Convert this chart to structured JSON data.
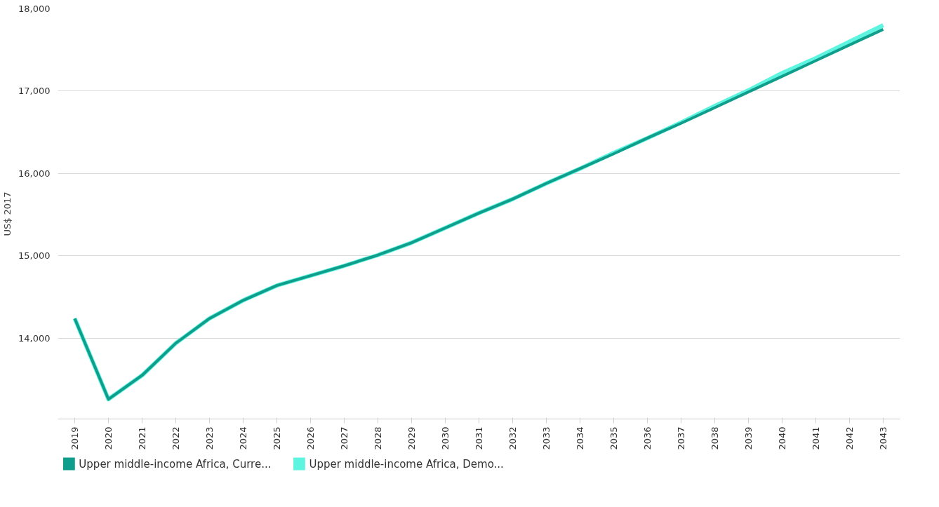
{
  "chart_data": {
    "type": "line",
    "ylabel": "US$ 2017",
    "categories": [
      "2019",
      "2020",
      "2021",
      "2022",
      "2023",
      "2024",
      "2025",
      "2026",
      "2027",
      "2028",
      "2029",
      "2030",
      "2031",
      "2032",
      "2033",
      "2034",
      "2035",
      "2036",
      "2037",
      "2038",
      "2039",
      "2040",
      "2041",
      "2042",
      "2043"
    ],
    "series": [
      {
        "name": "Upper middle-income Africa, Curre...",
        "color": "#0f9e8c",
        "values": [
          14240,
          13260,
          13550,
          13940,
          14240,
          14460,
          14640,
          14760,
          14880,
          15010,
          15160,
          15340,
          15520,
          15690,
          15880,
          16060,
          16240,
          16430,
          16610,
          16800,
          16990,
          17180,
          17370,
          17560,
          17750
        ]
      },
      {
        "name": "Upper middle-income Africa, Demo...",
        "color": "#5ef5e0",
        "values": [
          14240,
          13260,
          13550,
          13940,
          14240,
          14460,
          14640,
          14760,
          14880,
          15010,
          15160,
          15340,
          15520,
          15690,
          15880,
          16060,
          16250,
          16430,
          16620,
          16820,
          17010,
          17220,
          17400,
          17600,
          17800
        ]
      }
    ],
    "ylim": [
      13020,
      18000
    ],
    "yticks": [
      {
        "value": 14000,
        "label": "14,000"
      },
      {
        "value": 15000,
        "label": "15,000"
      },
      {
        "value": 16000,
        "label": "16,000"
      },
      {
        "value": 17000,
        "label": "17,000"
      },
      {
        "value": 18000,
        "label": "18,000"
      }
    ],
    "grid": "y",
    "legend": "bottom left",
    "line_style": "solid",
    "marker": "none"
  }
}
